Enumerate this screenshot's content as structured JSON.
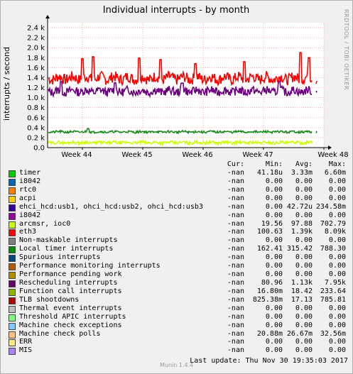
{
  "side_label": "RRDTOOL / TOBI OETIKER",
  "chart_data": {
    "type": "line",
    "title": "Individual interrupts - by month",
    "ylabel": "interrupts / second",
    "ylim": [
      0,
      2500
    ],
    "yticks": [
      0,
      200,
      400,
      600,
      800,
      1000,
      1200,
      1400,
      1600,
      1800,
      2000,
      2200,
      2400
    ],
    "ytick_labels": [
      "0.0",
      "0.2 k",
      "0.4 k",
      "0.6 k",
      "0.8 k",
      "1.0 k",
      "1.2 k",
      "1.4 k",
      "1.6 k",
      "1.8 k",
      "2.0 k",
      "2.2 k",
      "2.4 k"
    ],
    "x_ticks": [
      "Week 44",
      "Week 45",
      "Week 46",
      "Week 47",
      "Week 48"
    ],
    "grid": true,
    "series": [
      {
        "name": "eth3",
        "color": "#ff0000",
        "base": 1390,
        "amp": 110,
        "seed": 7,
        "spikes": [
          [
            0.13,
            1780
          ],
          [
            0.17,
            1820
          ],
          [
            0.34,
            1790
          ],
          [
            0.42,
            1760
          ],
          [
            0.55,
            1680
          ],
          [
            0.73,
            1720
          ],
          [
            0.94,
            1900
          ],
          [
            0.97,
            1800
          ]
        ]
      },
      {
        "name": "Rescheduling interrupts",
        "color": "#6e0080",
        "base": 1130,
        "amp": 85,
        "seed": 13,
        "spikes": [
          [
            0.05,
            1320
          ],
          [
            0.25,
            1300
          ],
          [
            0.5,
            1290
          ],
          [
            0.86,
            1330
          ]
        ]
      },
      {
        "name": "Local timer interrupts",
        "color": "#1a8a1a",
        "base": 315,
        "amp": 22,
        "seed": 21,
        "spikes": [
          [
            0.15,
            380
          ]
        ]
      },
      {
        "name": "arcmsr, ioc0",
        "color": "#ccff00",
        "base": 100,
        "amp": 30,
        "seed": 29,
        "spikes": []
      }
    ]
  },
  "legend": {
    "headers": [
      "Cur:",
      "Min:",
      "Avg:",
      "Max:"
    ],
    "rows": [
      {
        "name": "timer",
        "color": "#00cc00",
        "cur": "-nan",
        "min": "41.18u",
        "avg": "3.33m",
        "max": "6.60m"
      },
      {
        "name": "i8042",
        "color": "#0066b3",
        "cur": "-nan",
        "min": "0.00",
        "avg": "0.00",
        "max": "0.00"
      },
      {
        "name": "rtc0",
        "color": "#ff8000",
        "cur": "-nan",
        "min": "0.00",
        "avg": "0.00",
        "max": "0.00"
      },
      {
        "name": "acpi",
        "color": "#ffcc00",
        "cur": "-nan",
        "min": "0.00",
        "avg": "0.00",
        "max": "0.00"
      },
      {
        "name": "ehci_hcd:usb1, ohci_hcd:usb2, ohci_hcd:usb3",
        "color": "#330099",
        "cur": "-nan",
        "min": "0.00",
        "avg": "42.72u",
        "max": "234.58m"
      },
      {
        "name": "i8042",
        "color": "#990099",
        "cur": "-nan",
        "min": "0.00",
        "avg": "0.00",
        "max": "0.00"
      },
      {
        "name": "arcmsr, ioc0",
        "color": "#ccff00",
        "cur": "-nan",
        "min": "19.56",
        "avg": "97.88",
        "max": "702.79"
      },
      {
        "name": "eth3",
        "color": "#ff0000",
        "cur": "-nan",
        "min": "100.63",
        "avg": "1.39k",
        "max": "8.09k"
      },
      {
        "name": "Non-maskable interrupts",
        "color": "#808080",
        "cur": "-nan",
        "min": "0.00",
        "avg": "0.00",
        "max": "0.00"
      },
      {
        "name": "Local timer interrupts",
        "color": "#008f00",
        "cur": "-nan",
        "min": "162.41",
        "avg": "315.42",
        "max": "788.30"
      },
      {
        "name": "Spurious interrupts",
        "color": "#00487d",
        "cur": "-nan",
        "min": "0.00",
        "avg": "0.00",
        "max": "0.00"
      },
      {
        "name": "Performance monitoring interrupts",
        "color": "#b35a00",
        "cur": "-nan",
        "min": "0.00",
        "avg": "0.00",
        "max": "0.00"
      },
      {
        "name": "Performance pending work",
        "color": "#b38f00",
        "cur": "-nan",
        "min": "0.00",
        "avg": "0.00",
        "max": "0.00"
      },
      {
        "name": "Rescheduling interrupts",
        "color": "#6b006b",
        "cur": "-nan",
        "min": "80.96",
        "avg": "1.13k",
        "max": "7.95k"
      },
      {
        "name": "Function call interrupts",
        "color": "#8fb300",
        "cur": "-nan",
        "min": "16.80m",
        "avg": "18.42",
        "max": "233.64"
      },
      {
        "name": "TLB shootdowns",
        "color": "#b30000",
        "cur": "-nan",
        "min": "825.38m",
        "avg": "17.13",
        "max": "785.81"
      },
      {
        "name": "Thermal event interrupts",
        "color": "#bebebe",
        "cur": "-nan",
        "min": "0.00",
        "avg": "0.00",
        "max": "0.00"
      },
      {
        "name": "Threshold APIC interrupts",
        "color": "#80ff80",
        "cur": "-nan",
        "min": "0.00",
        "avg": "0.00",
        "max": "0.00"
      },
      {
        "name": "Machine check exceptions",
        "color": "#80c9ff",
        "cur": "-nan",
        "min": "0.00",
        "avg": "0.00",
        "max": "0.00"
      },
      {
        "name": "Machine check polls",
        "color": "#ffc080",
        "cur": "-nan",
        "min": "20.88m",
        "avg": "26.67m",
        "max": "32.56m"
      },
      {
        "name": "ERR",
        "color": "#ffe680",
        "cur": "-nan",
        "min": "0.00",
        "avg": "0.00",
        "max": "0.00"
      },
      {
        "name": "MIS",
        "color": "#aa80ff",
        "cur": "-nan",
        "min": "0.00",
        "avg": "0.00",
        "max": "0.00"
      }
    ]
  },
  "footer": {
    "munin_version": "Munin 1.4.4",
    "last_update": "Last update:  Thu Nov 30 19:35:03 2017"
  }
}
